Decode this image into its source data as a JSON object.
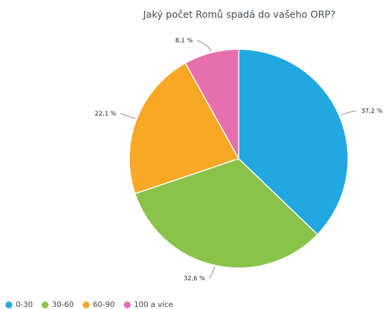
{
  "chart_data": {
    "type": "pie",
    "title": "Jaký počet Romů spadá do vašeho ORP?",
    "categories": [
      "0-30",
      "30-60",
      "60-90",
      "100 a více"
    ],
    "values": [
      37.2,
      32.6,
      22.1,
      8.1
    ],
    "data_labels": [
      "37,2 %",
      "32,6 %",
      "22,1 %",
      "8,1 %"
    ],
    "colors": [
      "#22a8e1",
      "#8bc34a",
      "#f9a825",
      "#e86fad"
    ],
    "legend_position": "bottom-left"
  }
}
